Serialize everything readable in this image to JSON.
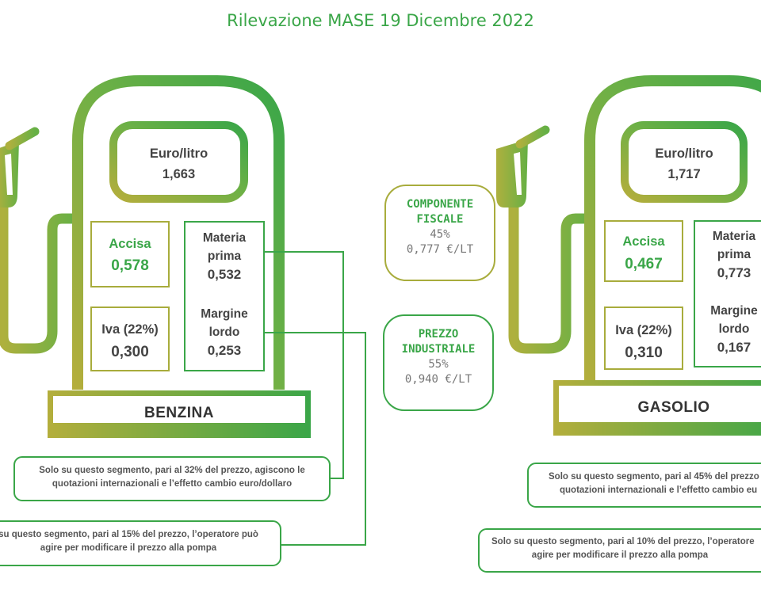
{
  "title": "Rilevazione MASE 19 Dicembre 2022",
  "colors": {
    "green": "#3aa648",
    "olive": "#a8ac3c",
    "text": "#444444"
  },
  "benzina": {
    "unit": "Euro/litro",
    "price": "1,663",
    "accisa_label": "Accisa",
    "accisa": "0,578",
    "iva_label": "Iva (22%)",
    "iva": "0,300",
    "materia_label_1": "Materia",
    "materia_label_2": "prima",
    "materia": "0,532",
    "margine_label_1": "Margine",
    "margine_label_2": "lordo",
    "margine": "0,253",
    "name": "BENZINA",
    "note1_line1": "Solo su questo segmento, pari al 32% del prezzo, agiscono le",
    "note1_line2": "quotazioni internazionali e l’effetto cambio euro/dollaro",
    "note2_line1": "su questo segmento, pari al 15% del prezzo, l’operatore può",
    "note2_line2": "agire per modificare il prezzo alla pompa"
  },
  "gasolio": {
    "unit": "Euro/litro",
    "price": "1,717",
    "accisa_label": "Accisa",
    "accisa": "0,467",
    "iva_label": "Iva (22%)",
    "iva": "0,310",
    "materia_label_1": "Materia",
    "materia_label_2": "prima",
    "materia": "0,773",
    "margine_label_1": "Margine",
    "margine_label_2": "lordo",
    "margine": "0,167",
    "name": "GASOLIO",
    "note1_line1": "Solo su questo segmento, pari al 45% del prezzo",
    "note1_line2": "quotazioni internazionali e l’effetto cambio eu",
    "note2_line1": "Solo su questo segmento, pari al 10% del prezzo, l’operatore",
    "note2_line2": "agire per modificare il prezzo alla pompa"
  },
  "fiscale": {
    "line1": "COMPONENTE",
    "line2": "FISCALE",
    "pct": "45%",
    "value": "0,777 €/LT"
  },
  "industriale": {
    "line1": "PREZZO",
    "line2": "INDUSTRIALE",
    "pct": "55%",
    "value": "0,940 €/LT"
  }
}
